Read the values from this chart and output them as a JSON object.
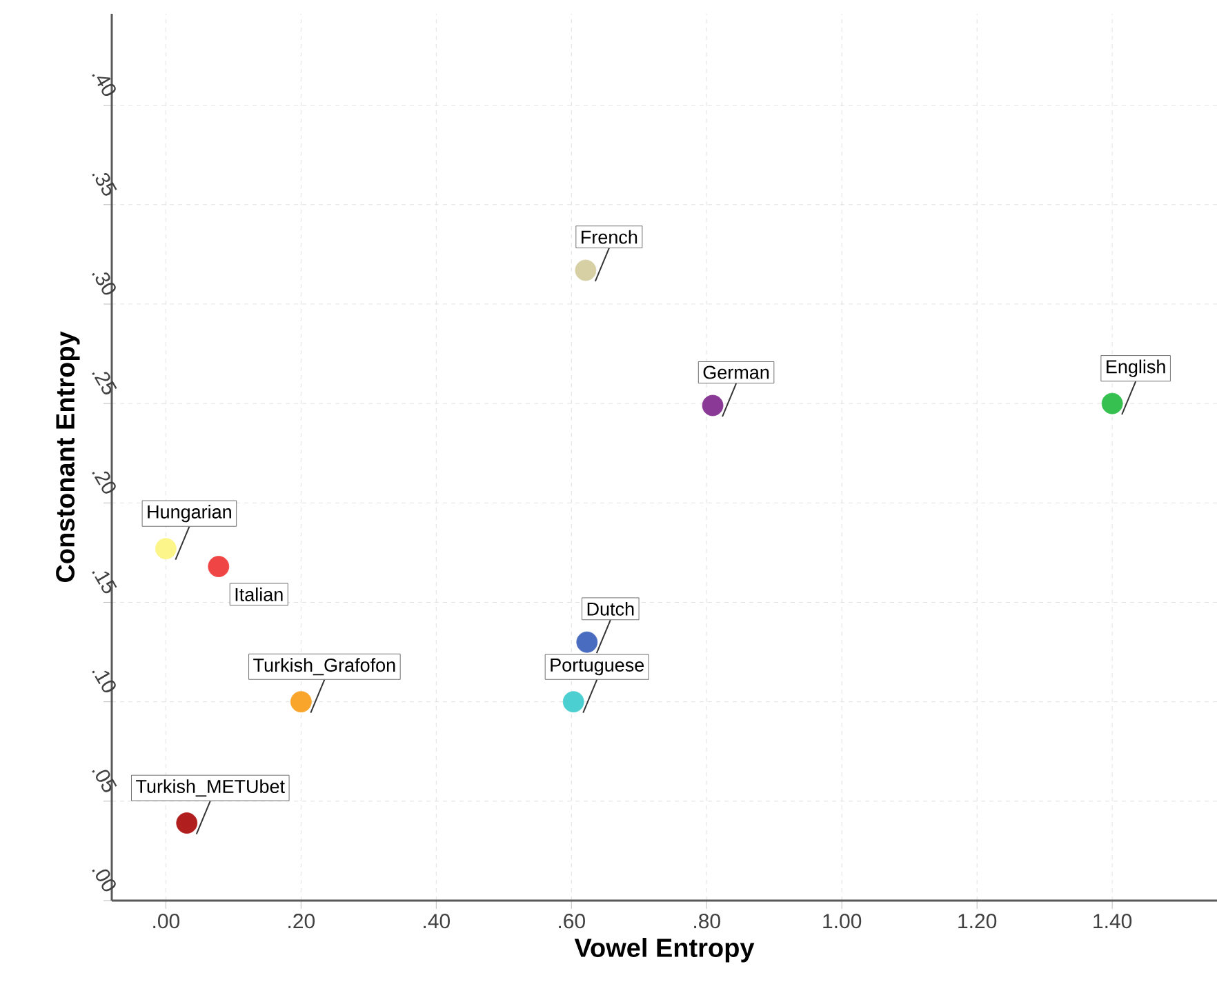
{
  "chart_data": {
    "type": "scatter",
    "xlabel": "Vowel Entropy",
    "ylabel": "Constonant Entropy",
    "xlim": [
      -0.08,
      1.555
    ],
    "ylim": [
      0,
      0.446
    ],
    "xticks": [
      {
        "value": 0,
        "label": ".00"
      },
      {
        "value": 0.2,
        "label": ".20"
      },
      {
        "value": 0.4,
        "label": ".40"
      },
      {
        "value": 0.6,
        "label": ".60"
      },
      {
        "value": 0.8,
        "label": ".80"
      },
      {
        "value": 1.0,
        "label": "1.00"
      },
      {
        "value": 1.2,
        "label": "1.20"
      },
      {
        "value": 1.4,
        "label": "1.40"
      }
    ],
    "yticks": [
      {
        "value": 0,
        "label": ".00"
      },
      {
        "value": 0.05,
        "label": ".05"
      },
      {
        "value": 0.1,
        "label": ".10"
      },
      {
        "value": 0.15,
        "label": ".15"
      },
      {
        "value": 0.2,
        "label": ".20"
      },
      {
        "value": 0.25,
        "label": ".25"
      },
      {
        "value": 0.3,
        "label": ".30"
      },
      {
        "value": 0.35,
        "label": ".35"
      },
      {
        "value": 0.4,
        "label": ".40"
      }
    ],
    "grid": true,
    "legend": false,
    "marker": "circle",
    "series": [
      {
        "name": "French",
        "color": "#d6d0a4",
        "x": [
          0.621
        ],
        "values": [
          0.317
        ]
      },
      {
        "name": "German",
        "color": "#8a3a96",
        "x": [
          0.809
        ],
        "values": [
          0.249
        ]
      },
      {
        "name": "English",
        "color": "#35c050",
        "x": [
          1.4
        ],
        "values": [
          0.25
        ]
      },
      {
        "name": "Hungarian",
        "color": "#fbf58a",
        "x": [
          0.0
        ],
        "values": [
          0.177
        ]
      },
      {
        "name": "Italian",
        "color": "#f04545",
        "x": [
          0.078
        ],
        "values": [
          0.168
        ]
      },
      {
        "name": "Dutch",
        "color": "#4a6cc0",
        "x": [
          0.623
        ],
        "values": [
          0.13
        ]
      },
      {
        "name": "Portuguese",
        "color": "#4ccfd0",
        "x": [
          0.603
        ],
        "values": [
          0.1
        ]
      },
      {
        "name": "Turkish_Grafofon",
        "color": "#f9a42a",
        "x": [
          0.2
        ],
        "values": [
          0.1
        ]
      },
      {
        "name": "Turkish_METUbet",
        "color": "#b01e1e",
        "x": [
          0.031
        ],
        "values": [
          0.039
        ]
      }
    ]
  }
}
